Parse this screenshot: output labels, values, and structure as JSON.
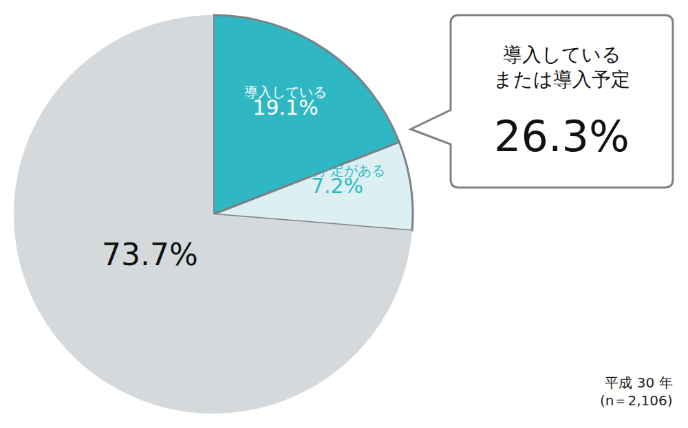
{
  "chart_data": {
    "type": "pie",
    "categories": [
      "導入している",
      "導入予定がある",
      null
    ],
    "values": [
      19.1,
      7.2,
      73.7
    ],
    "value_labels": [
      "19.1%",
      "7.2%",
      "73.7%"
    ],
    "colors": [
      "#2fb8c4",
      "#dcf0f3",
      "#d5d9dc"
    ],
    "data_labels": true,
    "annotations": [
      {
        "text": "導入している\nまたは導入予定",
        "value": 26.3,
        "label": "26.3%"
      }
    ],
    "note": [
      "平成 30 年",
      "(n＝2,106)"
    ]
  }
}
